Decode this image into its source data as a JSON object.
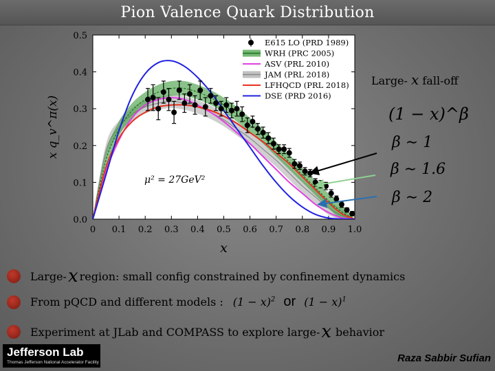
{
  "slide": {
    "title": "Pion Valence Quark Distribution",
    "author": "Raza Sabbir Sufian",
    "logo": {
      "name": "Jefferson Lab",
      "tagline": "Thomas Jefferson National Accelerator Facility"
    }
  },
  "chart_data": {
    "type": "line",
    "xlabel": "x",
    "ylabel": "x q_v^π(x)",
    "xlim": [
      0,
      1.0
    ],
    "ylim": [
      0,
      0.5
    ],
    "xticks": [
      "0",
      "0.1",
      "0.2",
      "0.3",
      "0.4",
      "0.5",
      "0.6",
      "0.7",
      "0.8",
      "0.9",
      "1.0"
    ],
    "yticks": [
      "0.0",
      "0.1",
      "0.2",
      "0.3",
      "0.4",
      "0.5"
    ],
    "grid": false,
    "legend_position": "top-right",
    "annotation": "μ² = 27GeV²",
    "colors": {
      "WRH": "#3c9a3c",
      "ASV": "#e040e0",
      "JAM": "#a8a8a8",
      "LFHQCD": "#e83020",
      "DSE": "#2020e0",
      "E615": "#000000"
    },
    "series": [
      {
        "name": "E615 LO (PRD 1989)",
        "key": "E615",
        "kind": "points",
        "x": [
          0.21,
          0.23,
          0.25,
          0.27,
          0.29,
          0.31,
          0.33,
          0.35,
          0.37,
          0.39,
          0.41,
          0.43,
          0.45,
          0.47,
          0.49,
          0.51,
          0.53,
          0.55,
          0.57,
          0.59,
          0.61,
          0.63,
          0.65,
          0.67,
          0.69,
          0.71,
          0.73,
          0.75,
          0.77,
          0.79,
          0.81,
          0.83,
          0.85,
          0.87,
          0.89,
          0.91,
          0.93,
          0.95,
          0.97,
          0.99
        ],
        "y": [
          0.325,
          0.33,
          0.3,
          0.345,
          0.325,
          0.29,
          0.35,
          0.315,
          0.34,
          0.31,
          0.35,
          0.305,
          0.335,
          0.315,
          0.3,
          0.31,
          0.295,
          0.3,
          0.285,
          0.255,
          0.265,
          0.245,
          0.235,
          0.22,
          0.205,
          0.19,
          0.19,
          0.18,
          0.15,
          0.145,
          0.13,
          0.125,
          0.1,
          0.095,
          0.09,
          0.07,
          0.055,
          0.04,
          0.025,
          0.015
        ],
        "err": [
          0.03,
          0.035,
          0.03,
          0.03,
          0.03,
          0.03,
          0.025,
          0.025,
          0.025,
          0.025,
          0.025,
          0.025,
          0.02,
          0.02,
          0.02,
          0.02,
          0.02,
          0.02,
          0.02,
          0.02,
          0.015,
          0.015,
          0.015,
          0.015,
          0.015,
          0.012,
          0.012,
          0.012,
          0.012,
          0.01,
          0.01,
          0.01,
          0.01,
          0.01,
          0.01,
          0.01,
          0.008,
          0.008,
          0.006,
          0.006
        ]
      },
      {
        "name": "WRH (PRC 2005)",
        "key": "WRH",
        "kind": "band",
        "x": [
          0,
          0.05,
          0.1,
          0.15,
          0.2,
          0.25,
          0.3,
          0.35,
          0.4,
          0.45,
          0.5,
          0.55,
          0.6,
          0.65,
          0.7,
          0.75,
          0.8,
          0.85,
          0.9,
          0.95,
          1.0
        ],
        "y": [
          0,
          0.16,
          0.245,
          0.295,
          0.325,
          0.345,
          0.355,
          0.355,
          0.345,
          0.33,
          0.31,
          0.285,
          0.255,
          0.225,
          0.19,
          0.155,
          0.12,
          0.085,
          0.05,
          0.02,
          0
        ],
        "band": 0.02
      },
      {
        "name": "ASV (PRL 2010)",
        "key": "ASV",
        "kind": "line",
        "x": [
          0,
          0.05,
          0.1,
          0.15,
          0.2,
          0.25,
          0.3,
          0.35,
          0.4,
          0.45,
          0.5,
          0.55,
          0.6,
          0.65,
          0.7,
          0.75,
          0.8,
          0.85,
          0.9,
          0.95,
          1.0
        ],
        "y": [
          0,
          0.13,
          0.215,
          0.275,
          0.31,
          0.325,
          0.33,
          0.325,
          0.31,
          0.29,
          0.265,
          0.235,
          0.205,
          0.17,
          0.135,
          0.1,
          0.07,
          0.04,
          0.018,
          0.004,
          0
        ]
      },
      {
        "name": "JAM (PRL 2018)",
        "key": "JAM",
        "kind": "band",
        "x": [
          0,
          0.05,
          0.1,
          0.15,
          0.2,
          0.25,
          0.3,
          0.35,
          0.4,
          0.45,
          0.5,
          0.55,
          0.6,
          0.65,
          0.7,
          0.75,
          0.8,
          0.85,
          0.9,
          0.95,
          1.0
        ],
        "y": [
          0,
          0.185,
          0.25,
          0.285,
          0.305,
          0.315,
          0.32,
          0.315,
          0.305,
          0.29,
          0.27,
          0.245,
          0.22,
          0.19,
          0.16,
          0.125,
          0.09,
          0.06,
          0.03,
          0.01,
          0
        ],
        "band": 0.018
      },
      {
        "name": "LFHQCD (PRL 2018)",
        "key": "LFHQCD",
        "kind": "line",
        "x": [
          0,
          0.05,
          0.1,
          0.15,
          0.2,
          0.25,
          0.3,
          0.35,
          0.4,
          0.45,
          0.5,
          0.55,
          0.6,
          0.65,
          0.7,
          0.75,
          0.8,
          0.85,
          0.9,
          0.95,
          1.0
        ],
        "y": [
          0,
          0.14,
          0.22,
          0.265,
          0.29,
          0.305,
          0.31,
          0.31,
          0.305,
          0.295,
          0.28,
          0.26,
          0.235,
          0.21,
          0.18,
          0.15,
          0.115,
          0.08,
          0.045,
          0.015,
          0
        ]
      },
      {
        "name": "DSE (PRD 2016)",
        "key": "DSE",
        "kind": "line",
        "x": [
          0,
          0.05,
          0.1,
          0.15,
          0.2,
          0.25,
          0.3,
          0.35,
          0.4,
          0.45,
          0.5,
          0.55,
          0.6,
          0.65,
          0.7,
          0.75,
          0.8,
          0.85,
          0.9,
          0.95,
          1.0
        ],
        "y": [
          0,
          0.12,
          0.24,
          0.335,
          0.395,
          0.425,
          0.43,
          0.415,
          0.385,
          0.345,
          0.295,
          0.245,
          0.195,
          0.145,
          0.1,
          0.062,
          0.033,
          0.013,
          0.003,
          0.0005,
          0
        ]
      }
    ]
  },
  "side_annotations": {
    "falloff_title": "Large- x fall-off",
    "falloff_prefix": "Large-",
    "falloff_var": "x",
    "falloff_suffix": "fall-off",
    "formula": "(1 − x)^β",
    "labels": [
      {
        "text": "β ∼ 1",
        "arrow_color": "#000000",
        "to": [
          0.83,
          0.125
        ]
      },
      {
        "text": "β ∼ 1.6",
        "arrow_color": "#8fd08f",
        "to": [
          0.85,
          0.092
        ]
      },
      {
        "text": "β ∼ 2",
        "arrow_color": "#2a6fb0",
        "to": [
          0.86,
          0.04
        ]
      }
    ]
  },
  "bullets": [
    {
      "prefix": "Large-",
      "var": "x",
      "suffix": "region: small config constrained by confinement dynamics"
    },
    {
      "prefix": "From pQCD and different models :",
      "formula1": "(1 − x)",
      "exp1": "2",
      "or": "or",
      "formula2": "(1 − x)",
      "exp2": "1"
    },
    {
      "prefix": "Experiment at JLab and COMPASS to explore large-",
      "var": "x",
      "suffix": "behavior"
    }
  ]
}
